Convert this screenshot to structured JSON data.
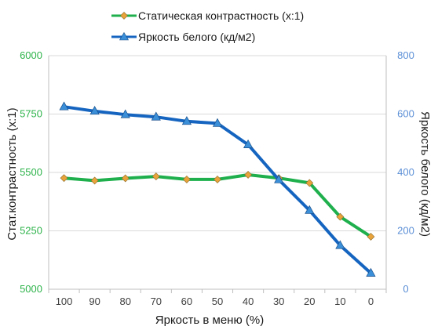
{
  "chart_data": {
    "type": "line",
    "categories": [
      "100",
      "90",
      "80",
      "70",
      "60",
      "50",
      "40",
      "30",
      "20",
      "10",
      "0"
    ],
    "xlabel": "Яркость в меню (%)",
    "ylabel_left": "Стат.контрастность  (x:1)",
    "ylabel_right": "Яркость белого (кд/м2)",
    "ylim_left": [
      5000,
      6000
    ],
    "ylim_right": [
      0,
      800
    ],
    "yticks_left": [
      "5000",
      "5250",
      "5500",
      "5750",
      "6000"
    ],
    "yticks_right": [
      "0",
      "200",
      "400",
      "600",
      "800"
    ],
    "left_tick_color": "#2db34a",
    "right_tick_color": "#5b8fd6",
    "legend_position": "top-center",
    "grid": "horizontal",
    "series": [
      {
        "name": "Статическая контрастность (x:1)",
        "axis": "left",
        "color": "#1fb04d",
        "marker": "diamond",
        "marker_fill": "#e8a33a",
        "values": [
          5476,
          5465,
          5475,
          5483,
          5470,
          5470,
          5490,
          5476,
          5455,
          5310,
          5225
        ]
      },
      {
        "name": "Яркость белого (кд/м2)",
        "axis": "right",
        "color": "#1565c0",
        "marker": "triangle",
        "marker_fill": "#3a8fd8",
        "values": [
          625,
          610,
          598,
          590,
          575,
          568,
          495,
          375,
          270,
          150,
          55
        ]
      }
    ]
  }
}
